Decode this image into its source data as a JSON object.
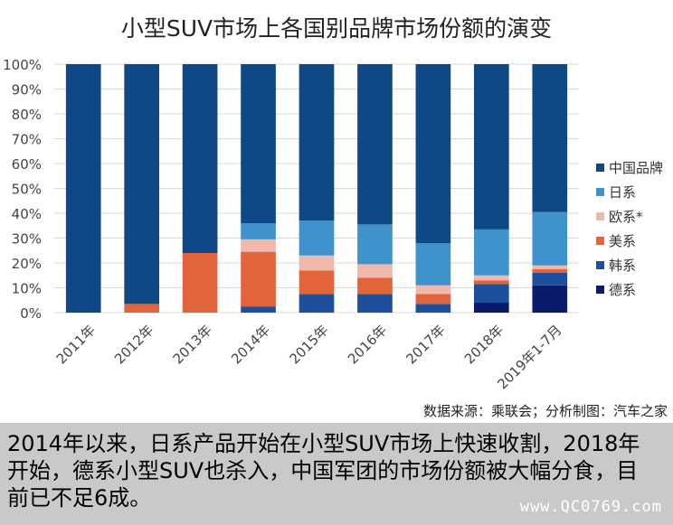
{
  "chart_data": {
    "type": "bar",
    "stacked": true,
    "title": "小型SUV市场上各国别品牌市场份额的演变",
    "categories": [
      "2011年",
      "2012年",
      "2013年",
      "2014年",
      "2015年",
      "2016年",
      "2017年",
      "2018年",
      "2019年1-7月"
    ],
    "ylim": [
      0,
      100
    ],
    "yticks": [
      "0%",
      "10%",
      "20%",
      "30%",
      "40%",
      "50%",
      "60%",
      "70%",
      "80%",
      "90%",
      "100%"
    ],
    "grid": true,
    "legend_position": "right",
    "series": [
      {
        "name": "德系",
        "color": "#0c1a6b",
        "values": [
          0,
          0,
          0,
          0,
          0,
          0,
          0,
          4,
          11
        ]
      },
      {
        "name": "韩系",
        "color": "#1d4f9c",
        "values": [
          0,
          0,
          0,
          2.5,
          7.5,
          7.5,
          3.5,
          7.5,
          5
        ]
      },
      {
        "name": "美系",
        "color": "#e2643b",
        "values": [
          0,
          3.5,
          24,
          22,
          9.5,
          6.5,
          4,
          1.5,
          1.5
        ]
      },
      {
        "name": "欧系*",
        "color": "#efb8ab",
        "values": [
          0,
          0,
          0,
          5,
          6,
          5.5,
          3.5,
          2,
          1.5
        ]
      },
      {
        "name": "日系",
        "color": "#3f92cc",
        "values": [
          0,
          0,
          0,
          6.5,
          14,
          16,
          17,
          18.5,
          21.5
        ]
      },
      {
        "name": "中国品牌",
        "color": "#0f4886",
        "values": [
          100,
          96.5,
          76,
          64,
          63,
          64.5,
          72,
          66.5,
          59.5
        ]
      }
    ],
    "legend_order": [
      "中国品牌",
      "日系",
      "欧系*",
      "美系",
      "韩系",
      "德系"
    ]
  },
  "source_text": "数据来源：乘联会；分析制图：汽车之家",
  "caption_text": "2014年以来，日系产品开始在小型SUV市场上快速收割，2018年开始，德系小型SUV也杀入，中国军团的市场份额被大幅分食，目前已不足6成。",
  "watermark": "www.QC0769.com"
}
